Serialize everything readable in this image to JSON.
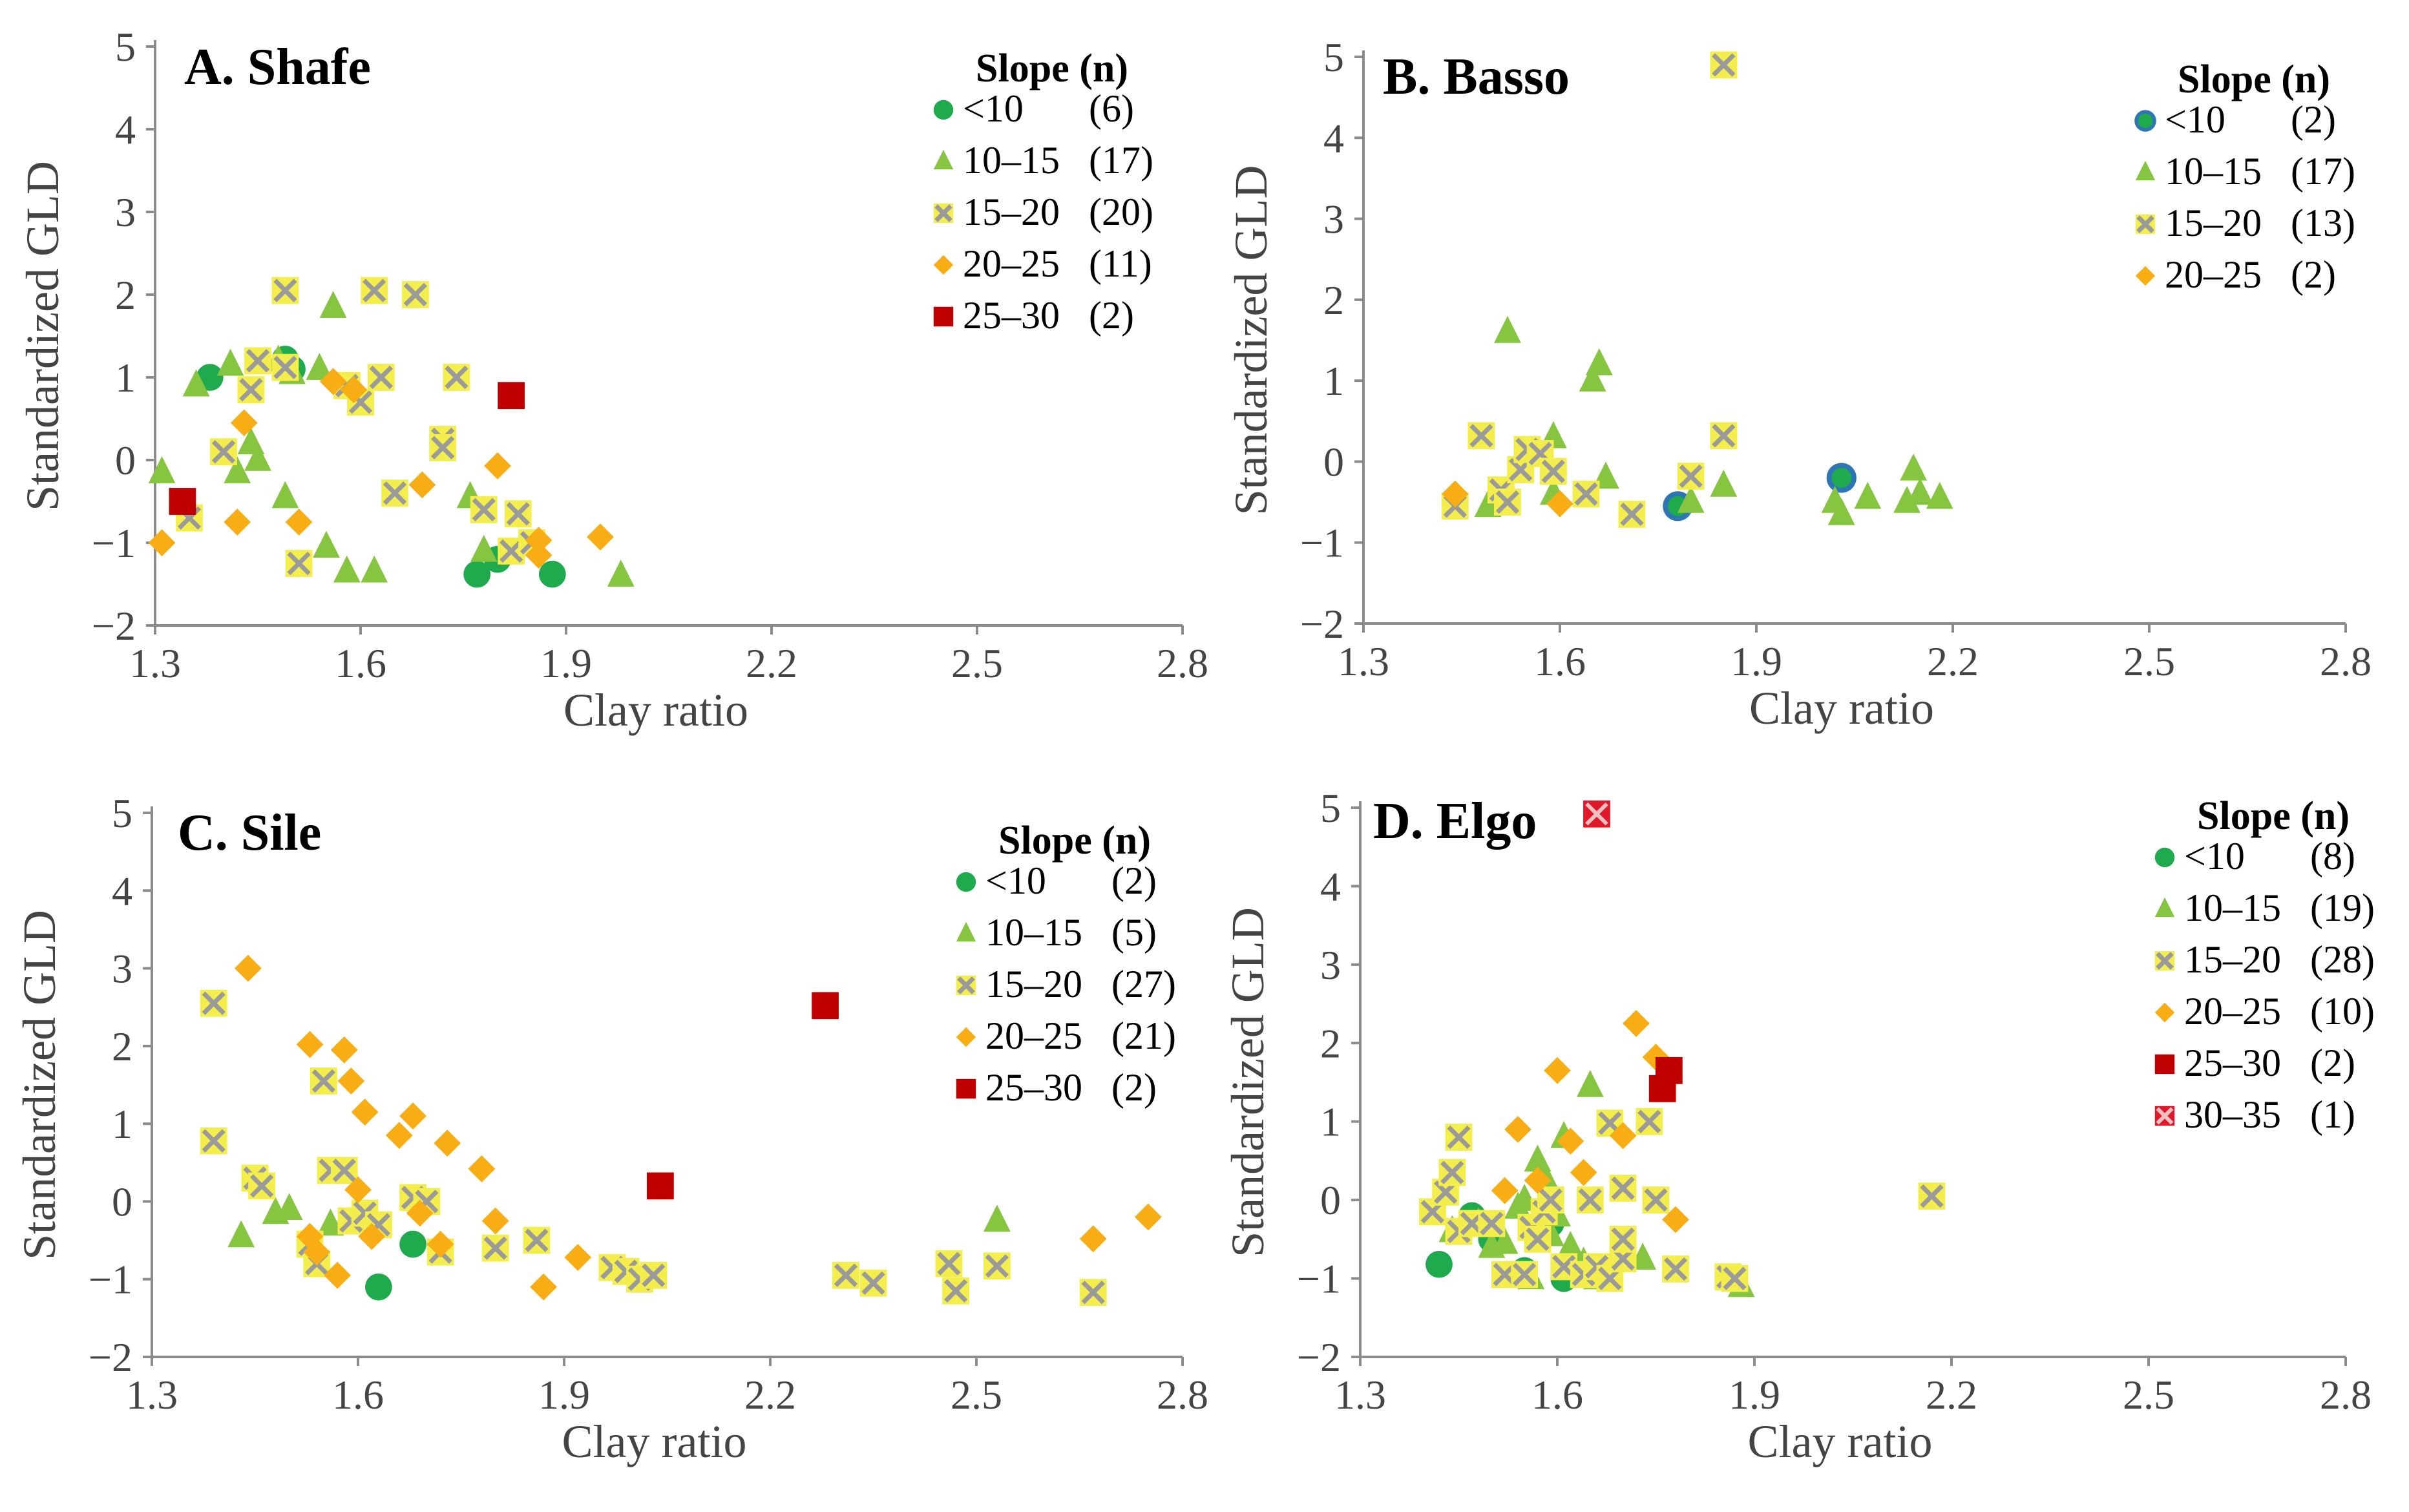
{
  "figure": {
    "type": "scatter-multipanel"
  },
  "colors": {
    "lt10": "#1faa4e",
    "s10_15": "#86c540",
    "s15_20_fill": "#f3ee4c",
    "s15_20_x": "#9a9a9a",
    "s20_25": "#f9ad14",
    "s25_30": "#c00000",
    "s30_35_fill": "#e0182c",
    "basso_lt10": "#2e75b6"
  },
  "chart_data": [
    {
      "type": "scatter",
      "title": "A. Shafe",
      "xlabel": "Clay ratio",
      "ylabel": "Standardized GLD",
      "xlim": [
        1.3,
        2.8
      ],
      "ylim": [
        -2,
        5
      ],
      "xticks": [
        "1.3",
        "1.6",
        "1.9",
        "2.2",
        "2.5",
        "2.8"
      ],
      "yticks": [
        "5",
        "4",
        "3",
        "2",
        "1",
        "0",
        "−1",
        "−2"
      ],
      "legend_title": "Slope (n)",
      "series": [
        {
          "name": "<10",
          "n": "(6)",
          "marker": "circle",
          "points": [
            [
              1.38,
              1.0
            ],
            [
              1.49,
              1.22
            ],
            [
              1.77,
              -1.38
            ],
            [
              1.8,
              -1.2
            ],
            [
              1.88,
              -1.38
            ],
            [
              1.5,
              1.1
            ]
          ]
        },
        {
          "name": "10–15",
          "n": "(17)",
          "marker": "triangle",
          "points": [
            [
              1.31,
              -0.15
            ],
            [
              1.36,
              0.9
            ],
            [
              1.41,
              1.15
            ],
            [
              1.42,
              -0.15
            ],
            [
              1.44,
              0.2
            ],
            [
              1.45,
              0.0
            ],
            [
              1.49,
              -0.45
            ],
            [
              1.54,
              1.1
            ],
            [
              1.56,
              1.85
            ],
            [
              1.55,
              -1.05
            ],
            [
              1.58,
              -1.35
            ],
            [
              1.62,
              -1.35
            ],
            [
              1.76,
              -0.45
            ],
            [
              1.78,
              -1.1
            ],
            [
              1.98,
              -1.4
            ],
            [
              1.5,
              1.05
            ],
            [
              1.48,
              1.2
            ]
          ]
        },
        {
          "name": "15–20",
          "n": "(20)",
          "marker": "xbox",
          "points": [
            [
              1.35,
              -0.7
            ],
            [
              1.4,
              0.1
            ],
            [
              1.44,
              0.85
            ],
            [
              1.45,
              1.2
            ],
            [
              1.49,
              2.05
            ],
            [
              1.49,
              1.12
            ],
            [
              1.51,
              -1.25
            ],
            [
              1.58,
              0.9
            ],
            [
              1.6,
              0.7
            ],
            [
              1.62,
              2.05
            ],
            [
              1.63,
              1.0
            ],
            [
              1.65,
              -0.4
            ],
            [
              1.68,
              2.0
            ],
            [
              1.72,
              0.25
            ],
            [
              1.72,
              0.15
            ],
            [
              1.74,
              1.0
            ],
            [
              1.78,
              -0.6
            ],
            [
              1.83,
              -0.65
            ],
            [
              1.82,
              -1.1
            ],
            [
              1.85,
              -1.0
            ]
          ]
        },
        {
          "name": "20–25",
          "n": "(11)",
          "marker": "diamond",
          "points": [
            [
              1.31,
              -1.0
            ],
            [
              1.42,
              -0.75
            ],
            [
              1.43,
              0.45
            ],
            [
              1.51,
              -0.75
            ],
            [
              1.56,
              0.95
            ],
            [
              1.59,
              0.85
            ],
            [
              1.69,
              -0.3
            ],
            [
              1.8,
              -0.07
            ],
            [
              1.86,
              -0.97
            ],
            [
              1.86,
              -1.15
            ],
            [
              1.95,
              -0.93
            ]
          ]
        },
        {
          "name": "25–30",
          "n": "(2)",
          "marker": "square",
          "points": [
            [
              1.34,
              -0.5
            ],
            [
              1.82,
              0.78
            ]
          ]
        }
      ]
    },
    {
      "type": "scatter",
      "title": "B. Basso",
      "xlabel": "Clay ratio",
      "ylabel": "Standardized GLD",
      "xlim": [
        1.3,
        2.8
      ],
      "ylim": [
        -2,
        5
      ],
      "xticks": [
        "1.3",
        "1.6",
        "1.9",
        "2.2",
        "2.5",
        "2.8"
      ],
      "yticks": [
        "5",
        "4",
        "3",
        "2",
        "1",
        "0",
        "−1",
        "−2"
      ],
      "legend_title": "Slope (n)",
      "series": [
        {
          "name": "<10",
          "n": "(2)",
          "marker": "circle-blue",
          "points": [
            [
              1.78,
              -0.55
            ],
            [
              2.03,
              -0.2
            ]
          ]
        },
        {
          "name": "10–15",
          "n": "(17)",
          "marker": "triangle",
          "points": [
            [
              1.49,
              -0.55
            ],
            [
              1.52,
              1.6
            ],
            [
              1.54,
              0.0
            ],
            [
              1.59,
              0.3
            ],
            [
              1.59,
              -0.4
            ],
            [
              1.65,
              1.0
            ],
            [
              1.66,
              1.2
            ],
            [
              1.67,
              -0.2
            ],
            [
              1.85,
              -0.3
            ],
            [
              2.02,
              -0.5
            ],
            [
              2.03,
              -0.65
            ],
            [
              2.07,
              -0.45
            ],
            [
              2.13,
              -0.5
            ],
            [
              2.14,
              -0.1
            ],
            [
              2.15,
              -0.4
            ],
            [
              2.18,
              -0.45
            ],
            [
              1.8,
              -0.5
            ]
          ]
        },
        {
          "name": "15–20",
          "n": "(13)",
          "marker": "xbox",
          "points": [
            [
              1.44,
              -0.55
            ],
            [
              1.48,
              0.32
            ],
            [
              1.51,
              -0.35
            ],
            [
              1.52,
              -0.5
            ],
            [
              1.54,
              -0.1
            ],
            [
              1.55,
              0.15
            ],
            [
              1.57,
              0.1
            ],
            [
              1.59,
              -0.12
            ],
            [
              1.64,
              -0.4
            ],
            [
              1.71,
              -0.65
            ],
            [
              1.8,
              -0.18
            ],
            [
              1.85,
              4.9
            ],
            [
              1.85,
              0.32
            ]
          ]
        },
        {
          "name": "20–25",
          "n": "(2)",
          "marker": "diamond",
          "points": [
            [
              1.44,
              -0.4
            ],
            [
              1.6,
              -0.52
            ]
          ]
        }
      ]
    },
    {
      "type": "scatter",
      "title": "C. Sile",
      "xlabel": "Clay ratio",
      "ylabel": "Standardized GLD",
      "xlim": [
        1.3,
        2.8
      ],
      "ylim": [
        -2,
        5
      ],
      "xticks": [
        "1.3",
        "1.6",
        "1.9",
        "2.2",
        "2.5",
        "2.8"
      ],
      "yticks": [
        "5",
        "4",
        "3",
        "2",
        "1",
        "0",
        "−1",
        "−2"
      ],
      "legend_title": "Slope (n)",
      "series": [
        {
          "name": "<10",
          "n": "(2)",
          "marker": "circle",
          "points": [
            [
              1.63,
              -1.1
            ],
            [
              1.68,
              -0.55
            ]
          ]
        },
        {
          "name": "10–15",
          "n": "(5)",
          "marker": "triangle",
          "points": [
            [
              1.43,
              -0.45
            ],
            [
              1.48,
              -0.15
            ],
            [
              1.5,
              -0.1
            ],
            [
              1.56,
              -0.3
            ],
            [
              2.53,
              -0.25
            ]
          ]
        },
        {
          "name": "15–20",
          "n": "(27)",
          "marker": "xbox",
          "points": [
            [
              1.39,
              2.55
            ],
            [
              1.39,
              0.78
            ],
            [
              1.45,
              0.3
            ],
            [
              1.46,
              0.2
            ],
            [
              1.54,
              -0.8
            ],
            [
              1.55,
              1.55
            ],
            [
              1.56,
              0.4
            ],
            [
              1.58,
              0.4
            ],
            [
              1.59,
              -0.25
            ],
            [
              1.61,
              -0.15
            ],
            [
              1.63,
              -0.3
            ],
            [
              1.68,
              0.05
            ],
            [
              1.7,
              0.0
            ],
            [
              1.72,
              -0.65
            ],
            [
              1.8,
              -0.6
            ],
            [
              1.86,
              -0.5
            ],
            [
              1.97,
              -0.85
            ],
            [
              1.99,
              -0.9
            ],
            [
              2.01,
              -1.0
            ],
            [
              2.03,
              -0.95
            ],
            [
              2.31,
              -0.95
            ],
            [
              2.35,
              -1.05
            ],
            [
              2.46,
              -0.8
            ],
            [
              2.47,
              -1.15
            ],
            [
              2.53,
              -0.83
            ],
            [
              2.67,
              -1.17
            ],
            [
              1.53,
              -0.55
            ]
          ]
        },
        {
          "name": "20–25",
          "n": "(21)",
          "marker": "diamond",
          "points": [
            [
              1.44,
              3.0
            ],
            [
              1.53,
              2.02
            ],
            [
              1.53,
              -0.45
            ],
            [
              1.54,
              -0.65
            ],
            [
              1.57,
              -0.95
            ],
            [
              1.58,
              1.95
            ],
            [
              1.59,
              1.55
            ],
            [
              1.6,
              0.15
            ],
            [
              1.61,
              1.15
            ],
            [
              1.62,
              -0.45
            ],
            [
              1.66,
              0.85
            ],
            [
              1.68,
              1.1
            ],
            [
              1.69,
              -0.15
            ],
            [
              1.72,
              -0.55
            ],
            [
              1.73,
              0.75
            ],
            [
              1.78,
              0.42
            ],
            [
              1.8,
              -0.25
            ],
            [
              1.87,
              -1.1
            ],
            [
              1.92,
              -0.72
            ],
            [
              2.67,
              -0.48
            ],
            [
              2.75,
              -0.2
            ]
          ]
        },
        {
          "name": "25–30",
          "n": "(2)",
          "marker": "square",
          "points": [
            [
              2.04,
              0.2
            ],
            [
              2.28,
              2.52
            ]
          ]
        }
      ]
    },
    {
      "type": "scatter",
      "title": "D. Elgo",
      "xlabel": "Clay ratio",
      "ylabel": "Standardized GLD",
      "xlim": [
        1.3,
        2.8
      ],
      "ylim": [
        -2,
        5
      ],
      "xticks": [
        "1.3",
        "1.6",
        "1.9",
        "2.2",
        "2.5",
        "2.8"
      ],
      "yticks": [
        "5",
        "4",
        "3",
        "2",
        "1",
        "0",
        "−1",
        "−2"
      ],
      "legend_title": "Slope (n)",
      "series": [
        {
          "name": "<10",
          "n": "(8)",
          "marker": "circle",
          "points": [
            [
              1.42,
              -0.82
            ],
            [
              1.47,
              -0.2
            ],
            [
              1.55,
              -0.9
            ],
            [
              1.59,
              -0.3
            ],
            [
              1.61,
              -1.0
            ],
            [
              1.62,
              -0.85
            ],
            [
              1.64,
              -0.95
            ],
            [
              1.5,
              -0.5
            ]
          ]
        },
        {
          "name": "10–15",
          "n": "(19)",
          "marker": "triangle",
          "points": [
            [
              1.44,
              -0.4
            ],
            [
              1.48,
              -0.3
            ],
            [
              1.5,
              -0.6
            ],
            [
              1.52,
              -0.55
            ],
            [
              1.54,
              -0.1
            ],
            [
              1.56,
              -1.0
            ],
            [
              1.57,
              0.5
            ],
            [
              1.58,
              0.3
            ],
            [
              1.59,
              -0.45
            ],
            [
              1.6,
              -0.2
            ],
            [
              1.61,
              0.8
            ],
            [
              1.62,
              -0.6
            ],
            [
              1.64,
              -0.8
            ],
            [
              1.65,
              1.45
            ],
            [
              1.66,
              -1.0
            ],
            [
              1.7,
              -0.6
            ],
            [
              1.73,
              -0.75
            ],
            [
              1.88,
              -1.1
            ],
            [
              1.55,
              0.0
            ]
          ]
        },
        {
          "name": "15–20",
          "n": "(28)",
          "marker": "xbox",
          "points": [
            [
              1.41,
              -0.15
            ],
            [
              1.43,
              0.1
            ],
            [
              1.44,
              0.35
            ],
            [
              1.45,
              0.8
            ],
            [
              1.45,
              -0.4
            ],
            [
              1.47,
              -0.3
            ],
            [
              1.5,
              -0.3
            ],
            [
              1.52,
              -0.95
            ],
            [
              1.55,
              -0.95
            ],
            [
              1.56,
              -0.35
            ],
            [
              1.57,
              -0.5
            ],
            [
              1.58,
              -0.15
            ],
            [
              1.59,
              0.0
            ],
            [
              1.61,
              -0.85
            ],
            [
              1.64,
              -0.95
            ],
            [
              1.65,
              0.0
            ],
            [
              1.66,
              -0.85
            ],
            [
              1.68,
              -1.0
            ],
            [
              1.7,
              -0.75
            ],
            [
              1.7,
              -0.5
            ],
            [
              1.7,
              0.15
            ],
            [
              1.74,
              1.0
            ],
            [
              1.75,
              0.0
            ],
            [
              1.78,
              -0.88
            ],
            [
              1.86,
              -0.98
            ],
            [
              1.87,
              -1.0
            ],
            [
              2.17,
              0.05
            ],
            [
              1.68,
              0.98
            ]
          ]
        },
        {
          "name": "20–25",
          "n": "(10)",
          "marker": "diamond",
          "points": [
            [
              1.52,
              0.12
            ],
            [
              1.54,
              0.9
            ],
            [
              1.57,
              0.25
            ],
            [
              1.6,
              1.65
            ],
            [
              1.62,
              0.75
            ],
            [
              1.64,
              0.35
            ],
            [
              1.7,
              0.82
            ],
            [
              1.72,
              2.25
            ],
            [
              1.75,
              1.82
            ],
            [
              1.78,
              -0.25
            ]
          ]
        },
        {
          "name": "25–30",
          "n": "(2)",
          "marker": "square",
          "points": [
            [
              1.76,
              1.42
            ],
            [
              1.77,
              1.65
            ]
          ]
        },
        {
          "name": "30–35",
          "n": "(1)",
          "marker": "xbox-red",
          "points": [
            [
              1.66,
              4.92
            ]
          ]
        }
      ]
    }
  ]
}
